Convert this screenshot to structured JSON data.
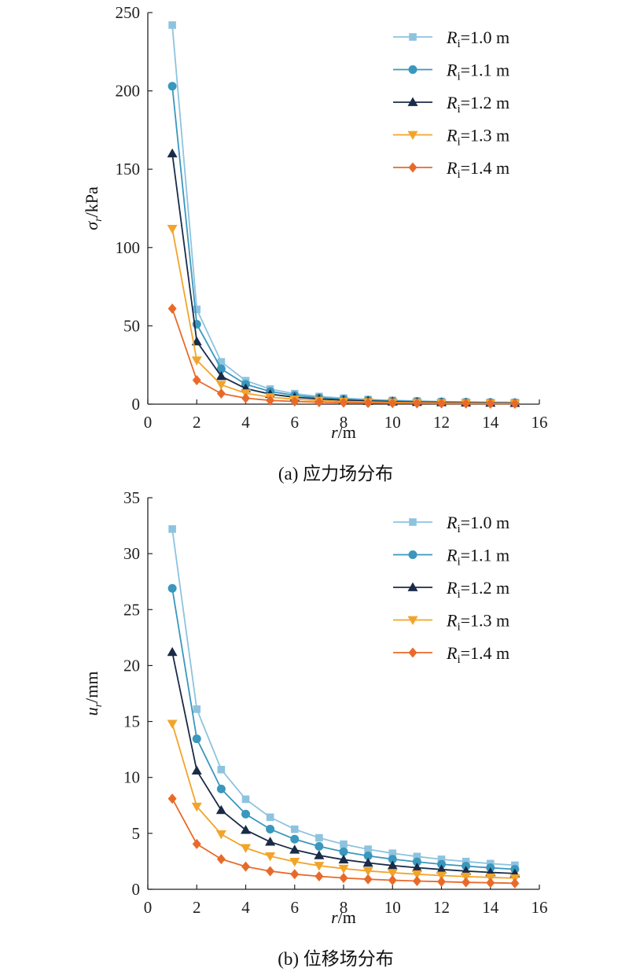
{
  "chart_data": [
    {
      "type": "line",
      "caption": "(a) 应力场分布",
      "xlabel_var": "r",
      "xlabel_unit": "/m",
      "ylabel_var": "σ",
      "ylabel_sub": "r",
      "ylabel_unit": "/kPa",
      "xlim": [
        0,
        16
      ],
      "ylim": [
        0,
        250
      ],
      "xticks": [
        0,
        2,
        4,
        6,
        8,
        10,
        12,
        14,
        16
      ],
      "yticks": [
        0,
        50,
        100,
        150,
        200,
        250
      ],
      "grid": false,
      "legend_position": "top-right",
      "x": [
        1,
        2,
        3,
        4,
        5,
        6,
        7,
        8,
        9,
        10,
        11,
        12,
        13,
        14,
        15
      ],
      "series": [
        {
          "name": "1.0 m",
          "color": "#8ec3df",
          "marker": "square",
          "values": [
            242,
            60.5,
            27,
            15,
            9.6,
            6.7,
            4.9,
            3.8,
            3.0,
            2.4,
            2.0,
            1.7,
            1.4,
            1.2,
            1.1
          ]
        },
        {
          "name": "1.1 m",
          "color": "#3a97bd",
          "marker": "circle",
          "values": [
            203,
            51,
            22.5,
            12.7,
            8.1,
            5.6,
            4.1,
            3.2,
            2.5,
            2.0,
            1.7,
            1.4,
            1.2,
            1.0,
            0.9
          ]
        },
        {
          "name": "1.2 m",
          "color": "#1a2b47",
          "marker": "triangle-up",
          "values": [
            160,
            40,
            17.8,
            10,
            6.4,
            4.4,
            3.3,
            2.5,
            2.0,
            1.6,
            1.3,
            1.1,
            0.95,
            0.82,
            0.71
          ]
        },
        {
          "name": "1.3 m",
          "color": "#f2a42a",
          "marker": "triangle-down",
          "values": [
            112,
            28,
            12.4,
            7.0,
            4.5,
            3.1,
            2.3,
            1.75,
            1.4,
            1.1,
            0.93,
            0.78,
            0.66,
            0.57,
            0.5
          ]
        },
        {
          "name": "1.4 m",
          "color": "#e86a2a",
          "marker": "diamond",
          "values": [
            61,
            15.3,
            6.8,
            3.8,
            2.4,
            1.7,
            1.25,
            0.95,
            0.75,
            0.61,
            0.5,
            0.42,
            0.36,
            0.31,
            0.27
          ]
        }
      ]
    },
    {
      "type": "line",
      "caption": "(b) 位移场分布",
      "xlabel_var": "r",
      "xlabel_unit": "/m",
      "ylabel_var": "u",
      "ylabel_sub": "r",
      "ylabel_unit": "/mm",
      "xlim": [
        0,
        16
      ],
      "ylim": [
        0,
        35
      ],
      "xticks": [
        0,
        2,
        4,
        6,
        8,
        10,
        12,
        14,
        16
      ],
      "yticks": [
        0,
        5,
        10,
        15,
        20,
        25,
        30,
        35
      ],
      "grid": false,
      "legend_position": "top-right",
      "x": [
        1,
        2,
        3,
        4,
        5,
        6,
        7,
        8,
        9,
        10,
        11,
        12,
        13,
        14,
        15
      ],
      "series": [
        {
          "name": "1.0 m",
          "color": "#8ec3df",
          "marker": "square",
          "values": [
            32.2,
            16.1,
            10.7,
            8.05,
            6.44,
            5.37,
            4.6,
            4.03,
            3.58,
            3.22,
            2.93,
            2.68,
            2.48,
            2.3,
            2.15
          ]
        },
        {
          "name": "1.1 m",
          "color": "#3a97bd",
          "marker": "circle",
          "values": [
            26.9,
            13.45,
            8.97,
            6.72,
            5.38,
            4.48,
            3.84,
            3.36,
            2.99,
            2.69,
            2.45,
            2.24,
            2.07,
            1.92,
            1.79
          ]
        },
        {
          "name": "1.2 m",
          "color": "#1a2b47",
          "marker": "triangle-up",
          "values": [
            21.2,
            10.6,
            7.07,
            5.3,
            4.24,
            3.53,
            3.03,
            2.65,
            2.36,
            2.12,
            1.93,
            1.77,
            1.63,
            1.51,
            1.41
          ]
        },
        {
          "name": "1.3 m",
          "color": "#f2a42a",
          "marker": "triangle-down",
          "values": [
            14.8,
            7.4,
            4.93,
            3.7,
            2.96,
            2.47,
            2.11,
            1.85,
            1.64,
            1.48,
            1.35,
            1.23,
            1.14,
            1.06,
            0.99
          ]
        },
        {
          "name": "1.4 m",
          "color": "#e86a2a",
          "marker": "diamond",
          "values": [
            8.1,
            4.05,
            2.7,
            2.03,
            1.62,
            1.35,
            1.16,
            1.01,
            0.9,
            0.81,
            0.74,
            0.68,
            0.62,
            0.58,
            0.54
          ]
        }
      ]
    }
  ],
  "legend": {
    "var": "R",
    "sub": "i",
    "eq": "="
  }
}
